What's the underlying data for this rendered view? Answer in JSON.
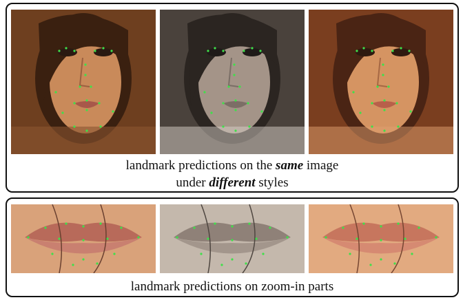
{
  "top_panel": {
    "caption_line1_prefix": "landmark predictions on the ",
    "caption_line1_emph": "same",
    "caption_line1_suffix": " image",
    "caption_line2_prefix": "under ",
    "caption_line2_emph": "different",
    "caption_line2_suffix": " styles",
    "images": [
      {
        "style": "original",
        "skin": "#c98a5a",
        "hair": "#3a2010",
        "bg": "#7a4a25"
      },
      {
        "style": "grayscale",
        "skin": "#a49488",
        "hair": "#2b2521",
        "bg": "#5c524b"
      },
      {
        "style": "warm",
        "skin": "#d59462",
        "hair": "#4a2414",
        "bg": "#8a4a28"
      }
    ]
  },
  "bottom_panel": {
    "caption": "landmark predictions on zoom-in parts",
    "images": [
      {
        "style": "original",
        "skin": "#d9a27a",
        "lip": "#b86a5a"
      },
      {
        "style": "grayscale",
        "skin": "#c4b8ac",
        "lip": "#8f8178"
      },
      {
        "style": "warm",
        "skin": "#e2aa80",
        "lip": "#c7765e"
      }
    ]
  },
  "colors": {
    "landmark": "#3fe04a",
    "border": "#111111"
  }
}
